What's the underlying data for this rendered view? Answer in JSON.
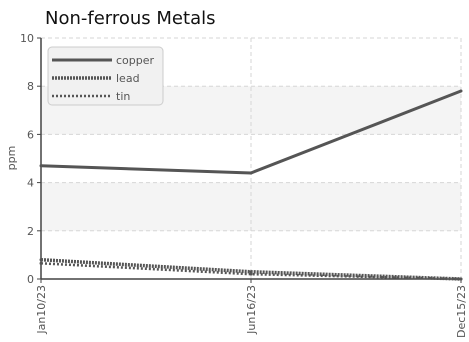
{
  "colors": {
    "series_line": "#555555",
    "grid": "#d6d6d6",
    "band_fill": "#f4f4f4",
    "axis": "#444444",
    "legend_bg": "#f1f1f1",
    "legend_border": "#cccccc"
  },
  "chart_data": {
    "type": "line",
    "title": "Non-ferrous Metals",
    "xlabel": "",
    "ylabel": "ppm",
    "ylim": [
      0,
      10
    ],
    "yticks": [
      "0",
      "2",
      "4",
      "6",
      "8",
      "10"
    ],
    "categories": [
      "Jan10/23",
      "Jun16/23",
      "Dec15/23"
    ],
    "grid": true,
    "alternating_bands": true,
    "legend_position": "top-left",
    "series": [
      {
        "name": "copper",
        "values": [
          4.7,
          4.4,
          7.8
        ],
        "style": "solid"
      },
      {
        "name": "lead",
        "values": [
          0.8,
          0.3,
          0.0
        ],
        "style": "dense-dotted"
      },
      {
        "name": "tin",
        "values": [
          0.65,
          0.2,
          0.0
        ],
        "style": "dotted"
      }
    ]
  }
}
